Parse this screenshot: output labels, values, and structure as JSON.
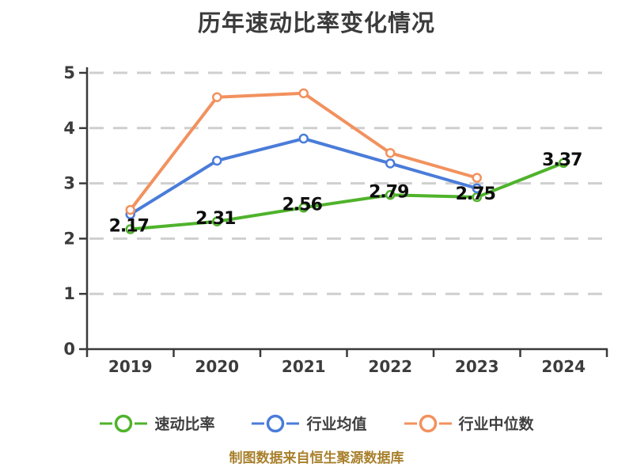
{
  "title": "历年速动比率变化情况",
  "source_note": "制图数据来自恒生聚源数据库",
  "colors": {
    "title_text": "#3B3B3B",
    "axis_line": "#3A3A3A",
    "axis_text": "#3C3C3C",
    "gridline": "#CFCFCF",
    "data_label": "#0D0D0D",
    "legend_text": "#3F3F3F",
    "source_text": "#A8802C",
    "marker_fill": "#FFFFFF",
    "series_green": "#4FB32B",
    "series_blue": "#4A7CD9",
    "series_orange": "#F2915E"
  },
  "chart_data": {
    "type": "line",
    "title": "历年速动比率变化情况",
    "categories": [
      "2019",
      "2020",
      "2021",
      "2022",
      "2023",
      "2024"
    ],
    "series": [
      {
        "name": "速动比率",
        "color": "#4FB32B",
        "values": [
          2.17,
          2.31,
          2.56,
          2.79,
          2.75,
          3.37
        ],
        "data_labels": true
      },
      {
        "name": "行业均值",
        "color": "#4A7CD9",
        "values": [
          2.44,
          3.41,
          3.81,
          3.36,
          2.91,
          null
        ],
        "data_labels": false
      },
      {
        "name": "行业中位数",
        "color": "#F2915E",
        "values": [
          2.52,
          4.56,
          4.63,
          3.55,
          3.1,
          null
        ],
        "data_labels": false
      }
    ],
    "xlabel": "",
    "ylabel": "",
    "ylim": [
      0,
      5
    ],
    "yticks": [
      0,
      1,
      2,
      3,
      4,
      5
    ],
    "grid": "horizontal dashed",
    "legend_position": "bottom",
    "marker_style": "open circle, white fill"
  }
}
